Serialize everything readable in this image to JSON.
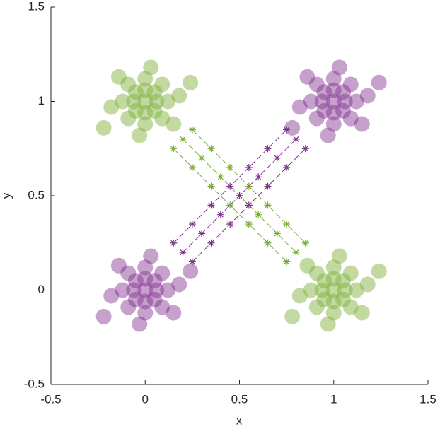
{
  "chart_data": {
    "type": "scatter",
    "xlabel": "x",
    "ylabel": "y",
    "xlim": [
      -0.5,
      1.5
    ],
    "ylim": [
      -0.5,
      1.5
    ],
    "xticks": [
      -0.5,
      0,
      0.5,
      1,
      1.5
    ],
    "yticks": [
      -0.5,
      0,
      0.5,
      1,
      1.5
    ],
    "series": [
      {
        "color": "#77ac30",
        "style": "dots",
        "x": [
          0,
          0.06,
          -0.06,
          0,
          0,
          0.05,
          -0.05,
          0.05,
          -0.05,
          0.12,
          -0.12,
          0,
          0,
          0.09,
          -0.09,
          0.09,
          -0.09,
          0.18,
          -0.18,
          0.03,
          -0.03,
          0.15,
          -0.14,
          0.24,
          -0.22,
          1,
          1.06,
          0.94,
          1,
          1,
          1.05,
          0.95,
          1.05,
          0.95,
          1.12,
          0.88,
          1,
          1,
          1.09,
          0.91,
          1.09,
          0.91,
          1.18,
          0.82,
          1.03,
          0.97,
          1.15,
          0.86,
          1.24,
          0.78
        ],
        "y": [
          1,
          1,
          1,
          1.06,
          0.94,
          1.05,
          1.05,
          0.95,
          0.95,
          1,
          1,
          1.12,
          0.88,
          1.09,
          1.09,
          0.91,
          0.91,
          1.03,
          0.97,
          1.18,
          0.82,
          0.88,
          1.13,
          1.1,
          0.86,
          0,
          0,
          0,
          0.06,
          -0.06,
          0.05,
          0.05,
          -0.05,
          -0.05,
          0,
          0,
          0.12,
          -0.12,
          0.09,
          0.09,
          -0.09,
          -0.09,
          0.03,
          -0.03,
          0.18,
          -0.18,
          -0.12,
          0.13,
          0.1,
          -0.14
        ]
      },
      {
        "color": "#7e2f8e",
        "style": "dots",
        "x": [
          1,
          1.06,
          0.94,
          1,
          1,
          1.05,
          0.95,
          1.05,
          0.95,
          1.12,
          0.88,
          1,
          1,
          1.09,
          0.91,
          1.09,
          0.91,
          1.18,
          0.82,
          1.03,
          0.97,
          1.15,
          0.86,
          1.24,
          0.78,
          0,
          0.06,
          -0.06,
          0,
          0,
          0.05,
          -0.05,
          0.05,
          -0.05,
          0.12,
          -0.12,
          0,
          0,
          0.09,
          -0.09,
          0.09,
          -0.09,
          0.18,
          -0.18,
          0.03,
          -0.03,
          0.15,
          -0.14,
          0.24,
          -0.22
        ],
        "y": [
          1,
          1,
          1,
          1.06,
          0.94,
          1.05,
          1.05,
          0.95,
          0.95,
          1,
          1,
          1.12,
          0.88,
          1.09,
          1.09,
          0.91,
          0.91,
          1.03,
          0.97,
          1.18,
          0.82,
          0.88,
          1.13,
          1.1,
          0.86,
          0,
          0,
          0,
          0.06,
          -0.06,
          0.05,
          0.05,
          -0.05,
          -0.05,
          0,
          0,
          0.12,
          -0.12,
          0.09,
          0.09,
          -0.09,
          -0.09,
          0.03,
          -0.03,
          0.18,
          -0.18,
          -0.12,
          0.13,
          0.1,
          -0.14
        ]
      },
      {
        "color": "#77ac30",
        "style": "dashed-star",
        "x": [
          0.2,
          0.3,
          0.4,
          0.5,
          0.6,
          0.7,
          0.8
        ],
        "y": [
          0.8,
          0.7,
          0.6,
          0.5,
          0.4,
          0.3,
          0.2
        ]
      },
      {
        "color": "#77ac30",
        "style": "dashed-star",
        "x": [
          0.25,
          0.35,
          0.45,
          0.55,
          0.65,
          0.75,
          0.85
        ],
        "y": [
          0.85,
          0.75,
          0.65,
          0.55,
          0.45,
          0.35,
          0.25
        ]
      },
      {
        "color": "#77ac30",
        "style": "dashed-star",
        "x": [
          0.15,
          0.25,
          0.35,
          0.45,
          0.55,
          0.65,
          0.75
        ],
        "y": [
          0.75,
          0.65,
          0.55,
          0.45,
          0.35,
          0.25,
          0.15
        ]
      },
      {
        "color": "#7e2f8e",
        "style": "dashed-star",
        "x": [
          0.2,
          0.3,
          0.4,
          0.5,
          0.6,
          0.7,
          0.8
        ],
        "y": [
          0.2,
          0.3,
          0.4,
          0.5,
          0.6,
          0.7,
          0.8
        ]
      },
      {
        "color": "#7e2f8e",
        "style": "dashed-star",
        "x": [
          0.15,
          0.25,
          0.35,
          0.45,
          0.55,
          0.65,
          0.75
        ],
        "y": [
          0.25,
          0.35,
          0.45,
          0.55,
          0.65,
          0.75,
          0.85
        ]
      },
      {
        "color": "#7e2f8e",
        "style": "dashed-star",
        "x": [
          0.25,
          0.35,
          0.45,
          0.55,
          0.65,
          0.75,
          0.85
        ],
        "y": [
          0.15,
          0.25,
          0.35,
          0.45,
          0.55,
          0.65,
          0.75
        ]
      }
    ]
  }
}
